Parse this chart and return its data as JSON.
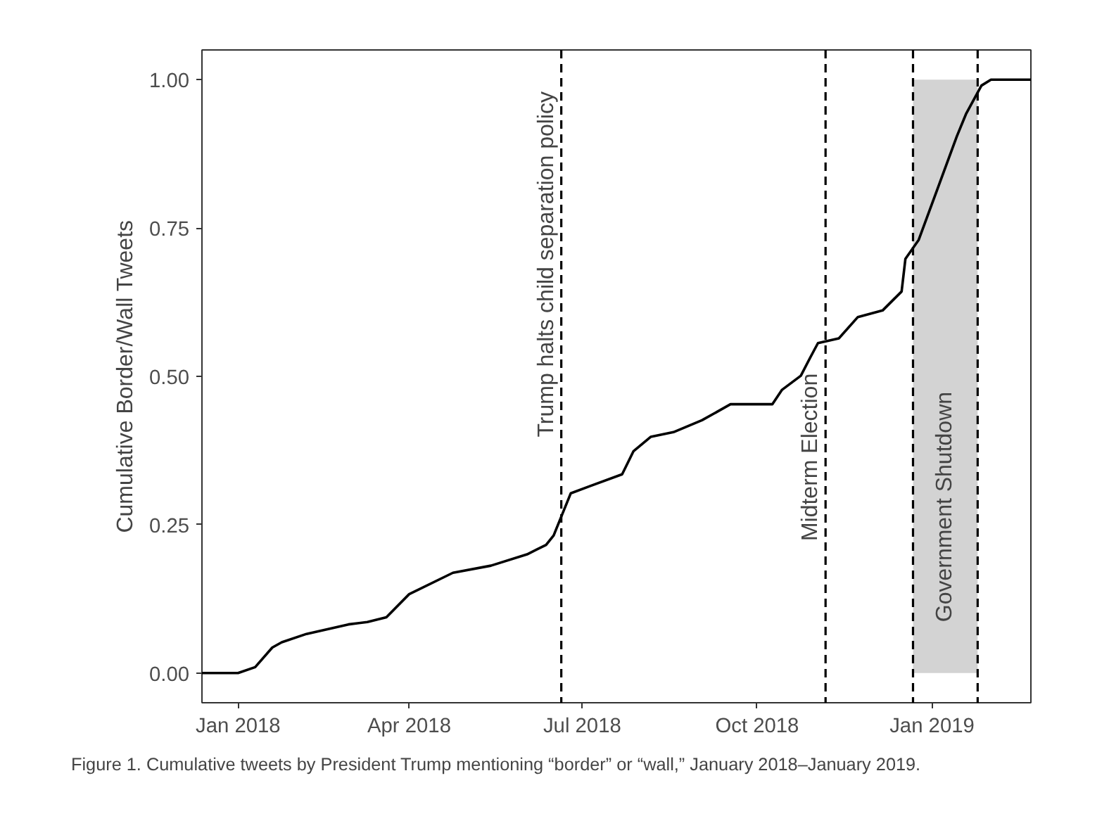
{
  "chart_data": {
    "type": "line",
    "ylabel": "Cumulative Border/Wall Tweets",
    "x": [
      "2017-12-13",
      "2018-01-01",
      "2018-01-10",
      "2018-01-19",
      "2018-01-24",
      "2018-02-06",
      "2018-02-28",
      "2018-03-10",
      "2018-03-20",
      "2018-04-01",
      "2018-04-24",
      "2018-05-14",
      "2018-06-02",
      "2018-06-12",
      "2018-06-16",
      "2018-06-17",
      "2018-06-25",
      "2018-07-05",
      "2018-07-22",
      "2018-07-28",
      "2018-08-06",
      "2018-08-18",
      "2018-09-02",
      "2018-09-17",
      "2018-10-09",
      "2018-10-14",
      "2018-10-24",
      "2018-10-29",
      "2018-11-02",
      "2018-11-13",
      "2018-11-23",
      "2018-12-06",
      "2018-12-16",
      "2018-12-18",
      "2018-12-25",
      "2019-01-04",
      "2019-01-14",
      "2019-01-19",
      "2019-01-27",
      "2019-02-01",
      "2019-02-22"
    ],
    "series": [
      {
        "color": "#000000",
        "values": [
          0,
          0,
          0.01,
          0.043,
          0.052,
          0.066,
          0.082,
          0.086,
          0.094,
          0.133,
          0.169,
          0.181,
          0.2,
          0.216,
          0.232,
          0.24,
          0.303,
          0.315,
          0.335,
          0.374,
          0.398,
          0.406,
          0.426,
          0.453,
          0.453,
          0.477,
          0.501,
          0.532,
          0.556,
          0.564,
          0.6,
          0.611,
          0.643,
          0.698,
          0.73,
          0.817,
          0.904,
          0.943,
          0.99,
          1.0,
          1.0
        ]
      }
    ],
    "xlim": [
      "2017-12-13",
      "2019-02-22"
    ],
    "xticks": [
      {
        "value": "2018-01-01",
        "label": "Jan 2018"
      },
      {
        "value": "2018-04-01",
        "label": "Apr 2018"
      },
      {
        "value": "2018-07-01",
        "label": "Jul 2018"
      },
      {
        "value": "2018-10-01",
        "label": "Oct 2018"
      },
      {
        "value": "2019-01-01",
        "label": "Jan 2019"
      }
    ],
    "ylim": [
      -0.05,
      1.05
    ],
    "yticks": [
      {
        "value": 0,
        "label": "0.00"
      },
      {
        "value": 0.25,
        "label": "0.25"
      },
      {
        "value": 0.5,
        "label": "0.50"
      },
      {
        "value": 0.75,
        "label": "0.75"
      },
      {
        "value": 1,
        "label": "1.00"
      }
    ],
    "ref_lines": [
      {
        "axis": "x",
        "value": "2018-06-20",
        "label": "Trump halts child separation policy",
        "line_style": "dashed",
        "color": "#000000"
      },
      {
        "axis": "x",
        "value": "2018-11-06",
        "label": "Midterm Election",
        "line_style": "dashed",
        "color": "#000000"
      },
      {
        "axis": "x",
        "value": "2018-12-22",
        "line_style": "dashed",
        "color": "#000000"
      },
      {
        "axis": "x",
        "value": "2019-01-25",
        "line_style": "dashed",
        "color": "#000000"
      }
    ],
    "bands": [
      {
        "axis": "x",
        "from": "2018-12-22",
        "to": "2019-01-25",
        "label": "Government Shutdown",
        "color": "#d3d3d3"
      }
    ],
    "annotations": [
      "Figure 1. Cumulative tweets by President Trump mentioning “border” or “wall,” January 2018–January 2019."
    ],
    "grid": false,
    "marker": "none",
    "line_style": "solid"
  }
}
